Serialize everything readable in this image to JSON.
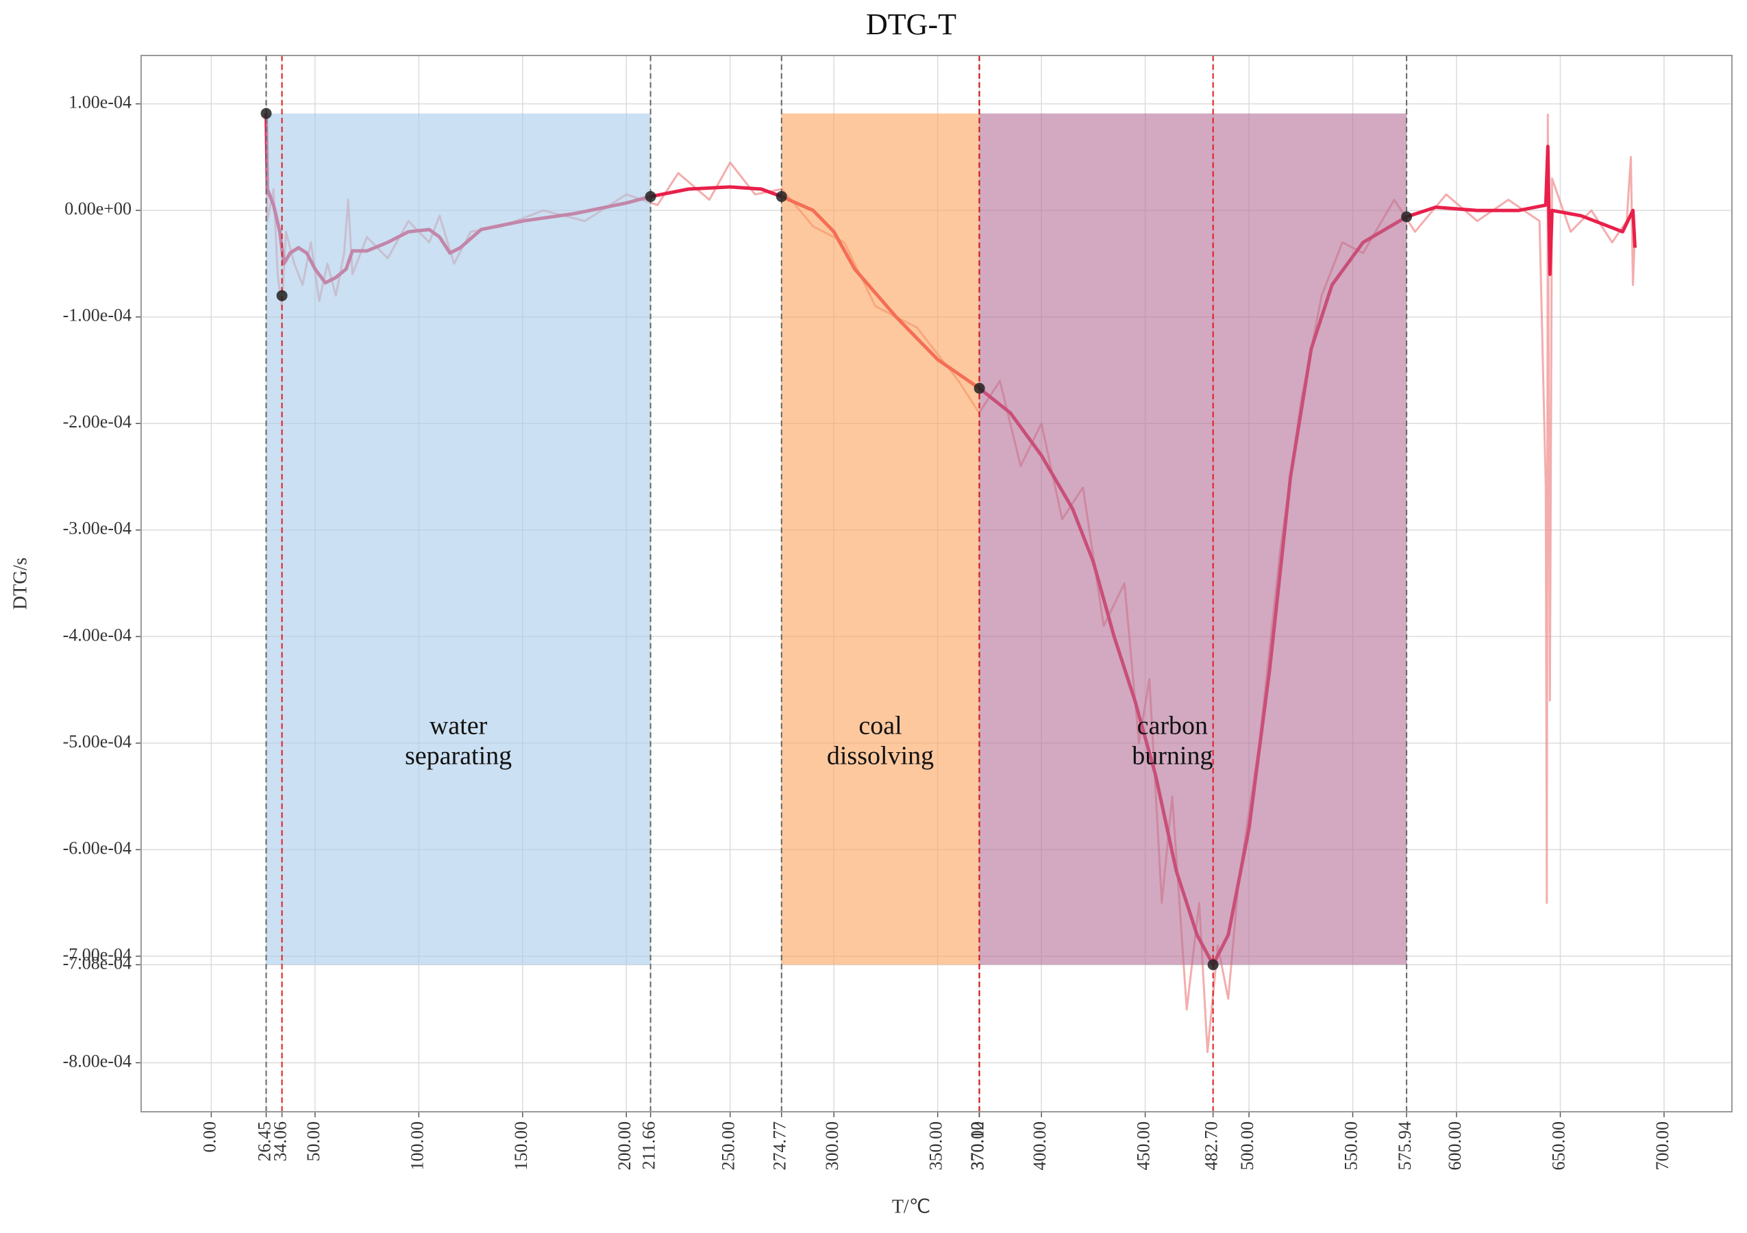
{
  "chart_data": {
    "type": "line",
    "title": "DTG-T",
    "x_label": "T/℃",
    "y_label": "DTG/s",
    "xlim": [
      -33.8,
      732.7
    ],
    "ylim": [
      -0.000846,
      0.0001454
    ],
    "grid": true,
    "xticks": [
      {
        "value": 0,
        "label": "0.00"
      },
      {
        "value": 26.45,
        "label": "26.45"
      },
      {
        "value": 34.06,
        "label": "34.06"
      },
      {
        "value": 50,
        "label": "50.00"
      },
      {
        "value": 100,
        "label": "100.00"
      },
      {
        "value": 150,
        "label": "150.00"
      },
      {
        "value": 200,
        "label": "200.00"
      },
      {
        "value": 211.66,
        "label": "211.66"
      },
      {
        "value": 250,
        "label": "250.00"
      },
      {
        "value": 274.77,
        "label": "274.77"
      },
      {
        "value": 300,
        "label": "300.00"
      },
      {
        "value": 350,
        "label": "350.00"
      },
      {
        "value": 370.0,
        "label": "370.00"
      },
      {
        "value": 370.12,
        "label": "370.12"
      },
      {
        "value": 400,
        "label": "400.00"
      },
      {
        "value": 450,
        "label": "450.00"
      },
      {
        "value": 482.7,
        "label": "482.70"
      },
      {
        "value": 500,
        "label": "500.00"
      },
      {
        "value": 550,
        "label": "550.00"
      },
      {
        "value": 575.94,
        "label": "575.94"
      },
      {
        "value": 600,
        "label": "600.00"
      },
      {
        "value": 650,
        "label": "650.00"
      },
      {
        "value": 700,
        "label": "700.00"
      }
    ],
    "yticks": [
      {
        "value": 0.0001,
        "label": "1.00e-04"
      },
      {
        "value": 0,
        "label": "0.00e+00"
      },
      {
        "value": -0.0001,
        "label": "-1.00e-04"
      },
      {
        "value": -0.0002,
        "label": "-2.00e-04"
      },
      {
        "value": -0.0003,
        "label": "-3.00e-04"
      },
      {
        "value": -0.0004,
        "label": "-4.00e-04"
      },
      {
        "value": -0.0005,
        "label": "-5.00e-04"
      },
      {
        "value": -0.0006,
        "label": "-6.00e-04"
      },
      {
        "value": -0.0007,
        "label": "-7.00e-04"
      },
      {
        "value": -0.000708,
        "label": "-7.08e-04"
      },
      {
        "value": -0.0008,
        "label": "-8.00e-04"
      }
    ],
    "regions": [
      {
        "label": [
          "water",
          "separating"
        ],
        "x0": 26.45,
        "x1": 211.66,
        "y0": -0.000708,
        "y1": 9.1e-05,
        "color": "#a8cbea",
        "label_y": -0.0005
      },
      {
        "label": [
          "coal",
          "dissolving"
        ],
        "x0": 274.77,
        "x1": 370.0,
        "y0": -0.000708,
        "y1": 9.1e-05,
        "color": "#fca35d",
        "label_y": -0.0005
      },
      {
        "label": [
          "carbon",
          "burning"
        ],
        "x0": 370.12,
        "x1": 575.94,
        "y0": -0.000708,
        "y1": 9.1e-05,
        "color": "#b46f98",
        "label_y": -0.0005
      }
    ],
    "vlines": [
      {
        "x": 26.45,
        "color": "#666666"
      },
      {
        "x": 34.06,
        "color": "#e31a1c"
      },
      {
        "x": 211.66,
        "color": "#666666"
      },
      {
        "x": 274.77,
        "color": "#666666"
      },
      {
        "x": 370.0,
        "color": "#666666"
      },
      {
        "x": 370.12,
        "color": "#e31a1c"
      },
      {
        "x": 482.7,
        "color": "#e31a1c"
      },
      {
        "x": 575.94,
        "color": "#666666"
      }
    ],
    "markers": {
      "color": "#222222",
      "x": [
        26.45,
        34.06,
        211.66,
        274.77,
        370.12,
        482.7,
        575.94
      ],
      "values": [
        9.1e-05,
        -8e-05,
        1.3e-05,
        1.3e-05,
        -0.000167,
        -0.000708,
        -6e-06
      ]
    },
    "series": [
      {
        "color": "#f08a8a",
        "width": 3,
        "x": [
          26.5,
          27,
          30,
          32,
          34,
          36,
          40,
          44,
          48,
          52,
          56,
          60,
          64,
          66,
          68,
          75,
          85,
          95,
          105,
          110,
          117,
          125,
          140,
          160,
          180,
          200,
          215,
          225,
          240,
          250,
          262,
          275,
          290,
          305,
          320,
          340,
          360,
          370,
          380,
          390,
          400,
          410,
          420,
          430,
          440,
          447,
          452,
          458,
          463,
          470,
          476,
          480,
          485,
          490,
          495,
          505,
          515,
          525,
          535,
          545,
          555,
          570,
          580,
          595,
          610,
          625,
          640,
          643,
          643.5,
          644,
          645,
          646,
          655,
          665,
          675,
          682,
          684,
          685,
          686
        ],
        "values": [
          9e-05,
          -1e-05,
          2e-05,
          -6e-05,
          -9e-05,
          -2e-05,
          -5e-05,
          -7e-05,
          -3e-05,
          -8.5e-05,
          -5e-05,
          -8e-05,
          -4e-05,
          1e-05,
          -6e-05,
          -2.5e-05,
          -4.5e-05,
          -1e-05,
          -3e-05,
          -5e-06,
          -5e-05,
          -2e-05,
          -1.5e-05,
          0.0,
          -1e-05,
          1.5e-05,
          5e-06,
          3.5e-05,
          1e-05,
          4.5e-05,
          1.5e-05,
          2e-05,
          -1.5e-05,
          -3e-05,
          -9e-05,
          -0.00011,
          -0.00016,
          -0.00019,
          -0.00016,
          -0.00024,
          -0.0002,
          -0.00029,
          -0.00026,
          -0.00039,
          -0.00035,
          -0.0005,
          -0.00044,
          -0.00065,
          -0.00055,
          -0.00075,
          -0.00065,
          -0.00079,
          -0.00069,
          -0.00074,
          -0.00063,
          -0.0005,
          -0.00032,
          -0.00018,
          -8e-05,
          -3e-05,
          -4e-05,
          1e-05,
          -2e-05,
          1.5e-05,
          -1e-05,
          1e-05,
          -1e-05,
          -0.00026,
          -0.00065,
          9e-05,
          -0.00046,
          3e-05,
          -2e-05,
          0.0,
          -3e-05,
          -1e-05,
          5e-05,
          -7e-05,
          -2e-05
        ]
      },
      {
        "color": "#e8204a",
        "width": 5,
        "x": [
          26.45,
          27,
          30,
          33,
          35,
          38,
          42,
          46,
          50,
          55,
          60,
          65,
          68,
          75,
          85,
          95,
          105,
          110,
          115,
          120,
          130,
          150,
          175,
          200,
          211.66,
          230,
          250,
          265,
          274.77,
          290,
          300,
          310,
          330,
          350,
          370.12,
          385,
          400,
          415,
          425,
          435,
          445,
          455,
          465,
          475,
          482.7,
          490,
          500,
          510,
          520,
          530,
          540,
          555,
          575.94,
          590,
          610,
          630,
          643,
          644,
          645,
          646,
          660,
          680,
          685,
          686
        ],
        "values": [
          9.1e-05,
          2e-05,
          5e-06,
          -2e-05,
          -5e-05,
          -4e-05,
          -3.5e-05,
          -4e-05,
          -5.5e-05,
          -6.8e-05,
          -6.3e-05,
          -5.5e-05,
          -3.8e-05,
          -3.8e-05,
          -3e-05,
          -2e-05,
          -1.8e-05,
          -2.5e-05,
          -4e-05,
          -3.5e-05,
          -1.8e-05,
          -1e-05,
          -3e-06,
          7e-06,
          1.3e-05,
          2e-05,
          2.2e-05,
          2e-05,
          1.3e-05,
          0.0,
          -2e-05,
          -5.5e-05,
          -0.0001,
          -0.00014,
          -0.000167,
          -0.00019,
          -0.00023,
          -0.00028,
          -0.00033,
          -0.0004,
          -0.00046,
          -0.00053,
          -0.00062,
          -0.00068,
          -0.000708,
          -0.00068,
          -0.00058,
          -0.00043,
          -0.00025,
          -0.00013,
          -7e-05,
          -3e-05,
          -6e-06,
          3e-06,
          0.0,
          0.0,
          5e-06,
          6e-05,
          -6e-05,
          0.0,
          -5e-06,
          -2e-05,
          0.0,
          -3.5e-05
        ]
      }
    ]
  }
}
